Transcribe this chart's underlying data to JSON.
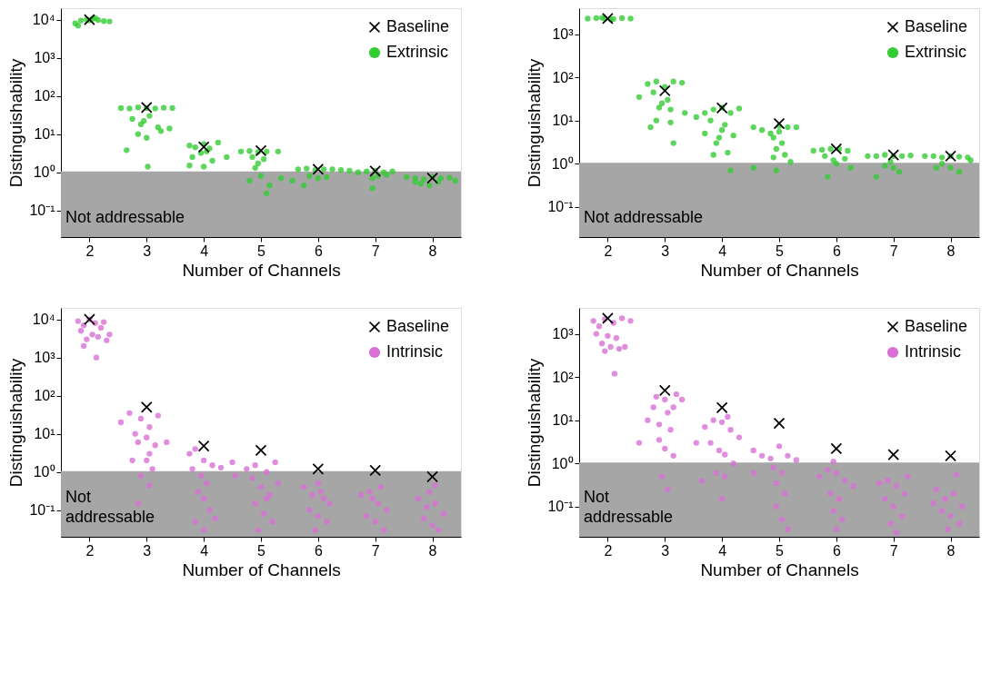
{
  "chart_data": [
    {
      "type": "scatter",
      "xlabel": "Number of Channels",
      "ylabel": "Distinguishability",
      "xlim": [
        1.5,
        8.5
      ],
      "xticks": [
        2,
        3,
        4,
        5,
        6,
        7,
        8
      ],
      "ylim": [
        0.02,
        20000
      ],
      "yticks": [
        {
          "value": 0.1,
          "label": "10⁻¹"
        },
        {
          "value": 1,
          "label": "10⁰"
        },
        {
          "value": 10,
          "label": "10¹"
        },
        {
          "value": 100,
          "label": "10²"
        },
        {
          "value": 1000,
          "label": "10³"
        },
        {
          "value": 10000,
          "label": "10⁴"
        }
      ],
      "log": "y",
      "grid": false,
      "legend": "top right",
      "bands": [
        {
          "axis": "y",
          "from": 0.02,
          "to": 1.05,
          "label": "Not addressable",
          "color": "#a6a6a6"
        }
      ],
      "series": [
        {
          "name": "Baseline",
          "color": "#000000",
          "marker": "cross",
          "x": [
            2,
            3,
            4,
            5,
            6,
            7,
            8
          ],
          "values": [
            10000,
            50,
            4.6,
            3.7,
            1.2,
            1.07,
            0.7
          ]
        },
        {
          "name": "Extrinsic",
          "color": "#33cc33",
          "marker": "circle",
          "x": [
            1.75,
            1.85,
            1.95,
            2.05,
            2.15,
            2.25,
            2.35,
            1.8,
            2.1,
            2.0,
            2.55,
            2.7,
            2.85,
            3.0,
            3.15,
            3.3,
            3.45,
            2.75,
            2.9,
            3.05,
            3.2,
            2.85,
            3.0,
            3.25,
            3.4,
            2.65,
            3.02,
            2.95,
            3.75,
            3.85,
            4.0,
            4.1,
            4.25,
            3.8,
            3.95,
            4.15,
            3.75,
            4.0,
            4.4,
            4.05,
            4.65,
            4.8,
            4.95,
            5.1,
            5.3,
            4.85,
            4.95,
            5.05,
            4.9,
            5.0,
            5.15,
            5.35,
            5.1,
            4.8,
            5.65,
            5.8,
            5.95,
            6.1,
            6.25,
            6.4,
            5.85,
            6.0,
            5.75,
            6.15,
            5.55,
            6.55,
            6.7,
            6.85,
            7.0,
            7.15,
            7.3,
            6.95,
            7.05,
            6.95,
            7.2,
            7.55,
            7.7,
            7.85,
            8.0,
            8.15,
            8.3,
            7.8,
            7.95,
            8.1,
            8.4,
            7.7
          ],
          "values": [
            8000,
            9500,
            10000,
            10500,
            9800,
            9200,
            9000,
            7000,
            11000,
            9600,
            48,
            47,
            50,
            48,
            47,
            49,
            48,
            25,
            18,
            30,
            15,
            10,
            8,
            12,
            14,
            3.8,
            1.4,
            22,
            5,
            4.5,
            5.5,
            4.2,
            6,
            2.5,
            3.2,
            2,
            1.5,
            1.4,
            2.5,
            3.5,
            3.5,
            3.6,
            3.4,
            3.5,
            3.5,
            2.5,
            1.7,
            2.2,
            1.3,
            0.8,
            0.45,
            0.7,
            0.28,
            0.6,
            1.2,
            1.25,
            1.15,
            1.2,
            1.2,
            1.15,
            0.8,
            0.7,
            0.45,
            0.75,
            0.6,
            1.1,
            1.0,
            1.05,
            1.1,
            1.0,
            1.05,
            0.7,
            0.8,
            0.38,
            0.85,
            0.75,
            0.7,
            0.65,
            0.75,
            0.7,
            0.72,
            0.5,
            0.45,
            0.55,
            0.6,
            0.55
          ]
        }
      ]
    },
    {
      "type": "scatter",
      "xlabel": "Number of Channels",
      "ylabel": "Distinguishability",
      "xlim": [
        1.5,
        8.5
      ],
      "xticks": [
        2,
        3,
        4,
        5,
        6,
        7,
        8
      ],
      "ylim": [
        0.02,
        4000
      ],
      "yticks": [
        {
          "value": 0.1,
          "label": "10⁻¹"
        },
        {
          "value": 1,
          "label": "10⁰"
        },
        {
          "value": 10,
          "label": "10¹"
        },
        {
          "value": 100,
          "label": "10²"
        },
        {
          "value": 1000,
          "label": "10³"
        }
      ],
      "log": "y",
      "grid": false,
      "legend": "top right",
      "bands": [
        {
          "axis": "y",
          "from": 0.02,
          "to": 1.05,
          "label": "Not addressable",
          "color": "#a6a6a6"
        }
      ],
      "series": [
        {
          "name": "Baseline",
          "color": "#000000",
          "marker": "cross",
          "x": [
            2,
            3,
            4,
            5,
            6,
            7,
            8
          ],
          "values": [
            2300,
            49,
            19.6,
            8.5,
            2.2,
            1.6,
            1.5
          ]
        },
        {
          "name": "Extrinsic",
          "color": "#33cc33",
          "marker": "circle",
          "x": [
            1.65,
            1.8,
            1.95,
            2.1,
            2.25,
            2.4,
            1.9,
            2.05,
            2.55,
            2.7,
            2.85,
            3.0,
            3.15,
            3.3,
            2.8,
            3.05,
            2.9,
            3.1,
            2.85,
            3.1,
            2.75,
            3.15,
            3.35,
            2.95,
            3.55,
            3.7,
            3.85,
            4.0,
            4.15,
            4.3,
            3.8,
            4.05,
            3.7,
            3.95,
            4.2,
            3.9,
            3.85,
            4.1,
            4.15,
            4.0,
            4.55,
            4.7,
            4.85,
            5.0,
            5.15,
            5.3,
            4.9,
            5.05,
            4.95,
            5.1,
            4.9,
            4.55,
            4.95,
            5.2,
            5.0,
            5.6,
            5.75,
            5.9,
            6.05,
            6.2,
            5.8,
            5.95,
            6.15,
            6.25,
            5.85,
            6.0,
            6.55,
            6.7,
            6.85,
            7.0,
            7.15,
            7.3,
            6.95,
            7.0,
            7.1,
            6.7,
            6.85,
            7.55,
            7.7,
            7.85,
            8.0,
            8.15,
            8.3,
            7.85,
            8.0,
            8.15,
            7.75,
            8.35
          ],
          "values": [
            2300,
            2350,
            2300,
            2250,
            2350,
            2300,
            2400,
            2200,
            35,
            70,
            80,
            60,
            80,
            75,
            45,
            30,
            20,
            18,
            10,
            9,
            7,
            3,
            15,
            25,
            12,
            15,
            18,
            20,
            15,
            19,
            10,
            8,
            5,
            4,
            4.5,
            3,
            1.6,
            1.8,
            0.7,
            6,
            7,
            6,
            5,
            7.5,
            7,
            7,
            4,
            3,
            2.2,
            1.6,
            1.4,
            0.8,
            0.7,
            1.1,
            5.5,
            2,
            2.1,
            2.2,
            2.2,
            2.0,
            1.5,
            1.2,
            1.3,
            0.8,
            0.5,
            1.0,
            1.5,
            1.5,
            1.6,
            1.5,
            1.5,
            1.55,
            1.1,
            0.8,
            0.65,
            0.5,
            0.9,
            1.5,
            1.5,
            1.4,
            1.5,
            1.45,
            1.4,
            1.0,
            0.8,
            0.65,
            0.8,
            1.2
          ]
        }
      ]
    },
    {
      "type": "scatter",
      "xlabel": "Number of Channels",
      "ylabel": "Distinguishability",
      "xlim": [
        1.5,
        8.5
      ],
      "xticks": [
        2,
        3,
        4,
        5,
        6,
        7,
        8
      ],
      "ylim": [
        0.02,
        20000
      ],
      "yticks": [
        {
          "value": 0.1,
          "label": "10⁻¹"
        },
        {
          "value": 1,
          "label": "10⁰"
        },
        {
          "value": 10,
          "label": "10¹"
        },
        {
          "value": 100,
          "label": "10²"
        },
        {
          "value": 1000,
          "label": "10³"
        },
        {
          "value": 10000,
          "label": "10⁴"
        }
      ],
      "log": "y",
      "grid": false,
      "legend": "top right",
      "bands": [
        {
          "axis": "y",
          "from": 0.02,
          "to": 1.05,
          "label": "Not\naddressable",
          "color": "#a6a6a6"
        }
      ],
      "series": [
        {
          "name": "Baseline",
          "color": "#000000",
          "marker": "cross",
          "x": [
            2,
            3,
            4,
            5,
            6,
            7,
            8
          ],
          "values": [
            10000,
            50,
            4.8,
            3.7,
            1.2,
            1.1,
            0.75
          ]
        },
        {
          "name": "Intrinsic",
          "color": "#da70d6",
          "marker": "circle",
          "x": [
            1.8,
            1.9,
            2.0,
            2.1,
            2.2,
            1.85,
            2.05,
            2.15,
            1.95,
            2.3,
            2.35,
            1.9,
            2.12,
            2.25,
            2.55,
            2.7,
            2.9,
            3.05,
            3.2,
            2.8,
            3.0,
            3.15,
            2.85,
            3.05,
            2.75,
            3.0,
            3.1,
            2.9,
            3.05,
            2.85,
            3.35,
            3.75,
            3.85,
            4.0,
            4.15,
            4.3,
            3.8,
            3.95,
            4.05,
            3.9,
            4.0,
            4.1,
            3.85,
            4.0,
            4.2,
            4.55,
            4.75,
            4.9,
            5.1,
            5.25,
            4.85,
            5.0,
            5.15,
            4.9,
            5.05,
            5.2,
            4.95,
            5.1,
            4.5,
            5.3,
            5.75,
            5.9,
            6.05,
            6.2,
            5.85,
            6.0,
            6.15,
            5.95,
            6.1,
            6.0,
            6.75,
            6.9,
            7.05,
            7.2,
            6.85,
            7.0,
            7.15,
            6.95,
            7.1,
            7.75,
            7.9,
            8.05,
            8.2,
            7.85,
            8.0,
            8.1,
            7.95,
            8.05
          ],
          "values": [
            9000,
            7000,
            10000,
            8000,
            6000,
            5000,
            4000,
            3500,
            3000,
            2800,
            4000,
            2000,
            1000,
            8500,
            20,
            35,
            25,
            15,
            30,
            10,
            8,
            5,
            6,
            3,
            2,
            2,
            1.2,
            0.8,
            0.45,
            0.15,
            6,
            3,
            4,
            2,
            1.5,
            1.3,
            1.2,
            0.8,
            0.5,
            0.3,
            0.2,
            0.1,
            0.05,
            0.03,
            0.06,
            0.8,
            1.2,
            1.5,
            1.0,
            1.8,
            0.7,
            0.4,
            0.25,
            0.15,
            0.08,
            0.05,
            0.03,
            0.2,
            1.8,
            0.5,
            0.4,
            0.25,
            0.3,
            0.15,
            0.1,
            0.07,
            0.05,
            0.03,
            0.2,
            0.5,
            0.25,
            0.3,
            0.15,
            0.1,
            0.07,
            0.05,
            0.03,
            0.2,
            0.4,
            0.2,
            0.12,
            0.15,
            0.08,
            0.06,
            0.04,
            0.03,
            0.3,
            0.45
          ]
        }
      ]
    },
    {
      "type": "scatter",
      "xlabel": "Number of Channels",
      "ylabel": "Distinguishability",
      "xlim": [
        1.5,
        8.5
      ],
      "xticks": [
        2,
        3,
        4,
        5,
        6,
        7,
        8
      ],
      "ylim": [
        0.02,
        4000
      ],
      "yticks": [
        {
          "value": 0.1,
          "label": "10⁻¹"
        },
        {
          "value": 1,
          "label": "10⁰"
        },
        {
          "value": 10,
          "label": "10¹"
        },
        {
          "value": 100,
          "label": "10²"
        },
        {
          "value": 1000,
          "label": "10³"
        }
      ],
      "log": "y",
      "grid": false,
      "legend": "top right",
      "bands": [
        {
          "axis": "y",
          "from": 0.02,
          "to": 1.05,
          "label": "Not\naddressable",
          "color": "#a6a6a6"
        }
      ],
      "series": [
        {
          "name": "Baseline",
          "color": "#000000",
          "marker": "cross",
          "x": [
            2,
            3,
            4,
            5,
            6,
            7,
            8
          ],
          "values": [
            2300,
            49,
            19.6,
            8.5,
            2.2,
            1.6,
            1.5
          ]
        },
        {
          "name": "Intrinsic",
          "color": "#da70d6",
          "marker": "circle",
          "x": [
            1.75,
            1.85,
            1.95,
            2.1,
            2.25,
            2.4,
            1.8,
            2.0,
            2.15,
            1.9,
            2.05,
            2.2,
            1.95,
            2.3,
            2.12,
            2.55,
            2.7,
            2.85,
            3.0,
            3.15,
            3.3,
            2.8,
            3.05,
            2.9,
            3.1,
            2.9,
            3.0,
            3.15,
            2.95,
            3.05,
            3.2,
            3.55,
            3.7,
            3.85,
            4.0,
            4.15,
            4.3,
            3.8,
            3.95,
            4.05,
            4.2,
            3.9,
            4.05,
            4.0,
            3.65,
            4.1,
            4.55,
            4.7,
            4.85,
            5.0,
            5.15,
            5.3,
            4.9,
            5.05,
            4.95,
            5.1,
            4.95,
            5.05,
            4.55,
            5.15,
            5.7,
            5.85,
            6.0,
            6.15,
            6.3,
            5.9,
            6.05,
            5.95,
            6.1,
            5.95,
            6.0,
            6.75,
            6.9,
            7.05,
            7.2,
            6.85,
            7.0,
            7.15,
            6.95,
            7.05,
            7.25,
            7.75,
            7.9,
            8.05,
            8.2,
            7.85,
            8.0,
            8.15,
            7.95,
            8.1,
            7.7
          ],
          "values": [
            2000,
            1500,
            2200,
            1800,
            2300,
            2000,
            1000,
            900,
            800,
            600,
            500,
            450,
            400,
            500,
            120,
            3,
            10,
            35,
            30,
            20,
            30,
            20,
            15,
            8,
            6,
            3.5,
            2.2,
            1.5,
            0.5,
            0.25,
            40,
            3,
            7,
            10,
            9,
            6,
            4,
            3,
            2,
            1.6,
            1.0,
            0.6,
            0.5,
            0.15,
            0.4,
            12,
            2,
            1.5,
            1.3,
            2.5,
            1.5,
            1.2,
            0.8,
            0.6,
            0.35,
            0.2,
            0.1,
            0.05,
            0.6,
            0.03,
            0.5,
            0.7,
            0.6,
            0.4,
            0.3,
            0.2,
            0.15,
            0.08,
            0.05,
            1.1,
            0.03,
            0.35,
            0.4,
            0.3,
            0.2,
            0.15,
            0.1,
            0.06,
            0.04,
            0.025,
            0.5,
            0.25,
            0.15,
            0.2,
            0.1,
            0.08,
            0.06,
            0.04,
            0.03,
            0.55,
            0.12
          ]
        }
      ]
    }
  ]
}
